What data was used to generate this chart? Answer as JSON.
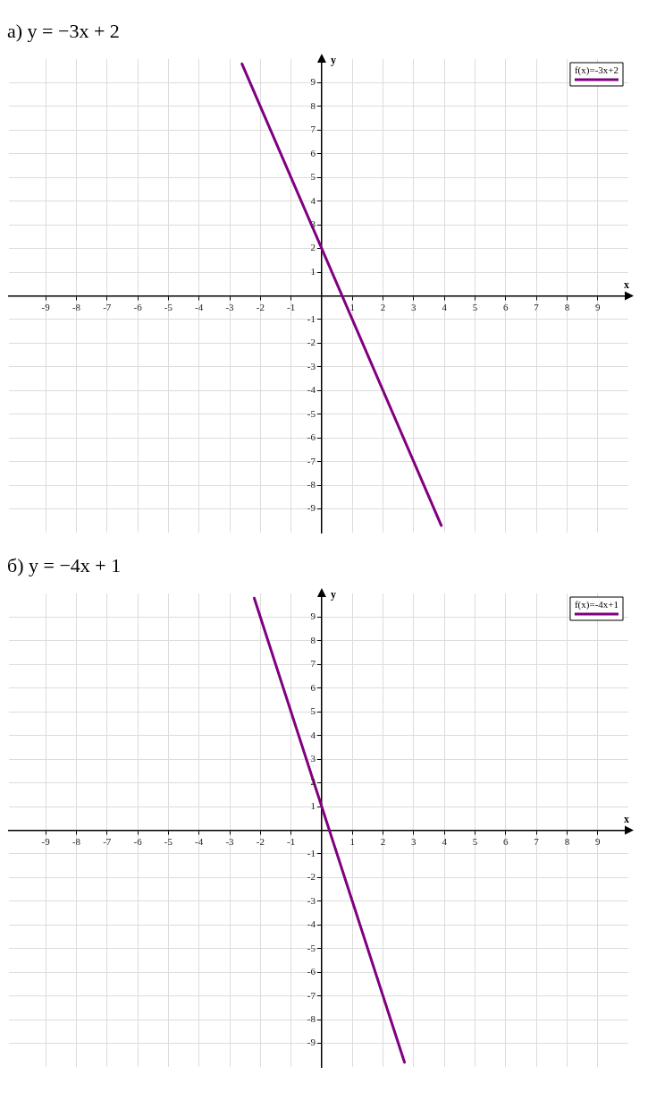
{
  "chart_data": [
    {
      "type": "line",
      "title": "а) y = −3x + 2",
      "xlabel": "x",
      "ylabel": "y",
      "xlim": [
        -10.2,
        10
      ],
      "ylim": [
        -10,
        10
      ],
      "xticks": [
        -9,
        -8,
        -7,
        -6,
        -5,
        -4,
        -3,
        -2,
        -1,
        1,
        2,
        3,
        4,
        5,
        6,
        7,
        8,
        9
      ],
      "yticks": [
        -9,
        -8,
        -7,
        -6,
        -5,
        -4,
        -3,
        -2,
        -1,
        1,
        2,
        3,
        4,
        5,
        6,
        7,
        8,
        9
      ],
      "grid": true,
      "legend": "top right",
      "marker": "none",
      "line_style": "solid",
      "series": [
        {
          "name": "f(x)=-3x+2",
          "color": "#800080",
          "x": [
            -2.6,
            3.9
          ],
          "values": [
            9.8,
            -9.7
          ]
        }
      ]
    },
    {
      "type": "line",
      "title": "б) y = −4x + 1",
      "xlabel": "x",
      "ylabel": "y",
      "xlim": [
        -10.2,
        10
      ],
      "ylim": [
        -10,
        10
      ],
      "xticks": [
        -9,
        -8,
        -7,
        -6,
        -5,
        -4,
        -3,
        -2,
        -1,
        1,
        2,
        3,
        4,
        5,
        6,
        7,
        8,
        9
      ],
      "yticks": [
        -9,
        -8,
        -7,
        -6,
        -5,
        -4,
        -3,
        -2,
        -1,
        1,
        2,
        3,
        4,
        5,
        6,
        7,
        8,
        9
      ],
      "grid": true,
      "legend": "top right",
      "marker": "none",
      "line_style": "solid",
      "series": [
        {
          "name": "f(x)=-4x+1",
          "color": "#800080",
          "x": [
            -2.2,
            2.7
          ],
          "values": [
            9.8,
            -9.8
          ]
        }
      ]
    }
  ]
}
